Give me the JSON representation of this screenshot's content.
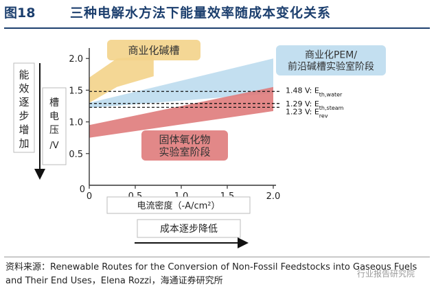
{
  "figure": {
    "number": "图18",
    "title": "三种电解水方法下能量效率随成本变化关系"
  },
  "source": {
    "label": "资料来源：",
    "text": "Renewable Routes for the Conversion of Non-Fossil Feedstocks into Gaseous Fuels and Their End Uses，Elena Rozzi，海通证券研究所"
  },
  "watermark": "行业报告研究院",
  "left_arrow_label": "能效逐步增加",
  "bottom_arrow_label": "成本逐步降低",
  "chart_data": {
    "type": "area",
    "ylabel": "槽电压/V",
    "xlabel": "电流密度（-A/cm²）",
    "xlim": [
      0,
      2.0
    ],
    "ylim": [
      0,
      2.1
    ],
    "xticks": [
      "0",
      "0.5",
      "1.0",
      "1.5",
      "2.0"
    ],
    "xtick_values": [
      0,
      0.5,
      1.0,
      1.5,
      2.0
    ],
    "yticks": [
      "0",
      "0.5",
      "1.0",
      "1.5",
      "2.0"
    ],
    "ytick_values": [
      0,
      0.5,
      1.0,
      1.5,
      2.0
    ],
    "series": [
      {
        "name": "商业化碱槽",
        "color": "#f3d389",
        "x": [
          0,
          0.3,
          0.7
        ],
        "lower": [
          1.3,
          1.55,
          1.72
        ],
        "upper": [
          1.7,
          2.0,
          2.05
        ]
      },
      {
        "name": "商业化PEM/\n前沿碱槽实验室阶段",
        "color": "#bcdcee",
        "x": [
          0,
          2.0
        ],
        "lower": [
          1.22,
          1.45
        ],
        "upper": [
          1.3,
          2.0
        ]
      },
      {
        "name": "固体氧化物\n实验室阶段",
        "color": "#df7b7b",
        "x": [
          0,
          2.0
        ],
        "lower": [
          0.75,
          1.17
        ],
        "upper": [
          0.95,
          1.55
        ]
      }
    ],
    "reference_lines": [
      {
        "value": 1.48,
        "label_prefix": "1.48 V: E",
        "label_sub": "th,water"
      },
      {
        "value": 1.29,
        "label_prefix": "1.29 V: E",
        "label_sub": "th,steam"
      },
      {
        "value": 1.23,
        "label_prefix": "1.23 V: E",
        "label_sub": "rev"
      }
    ]
  }
}
